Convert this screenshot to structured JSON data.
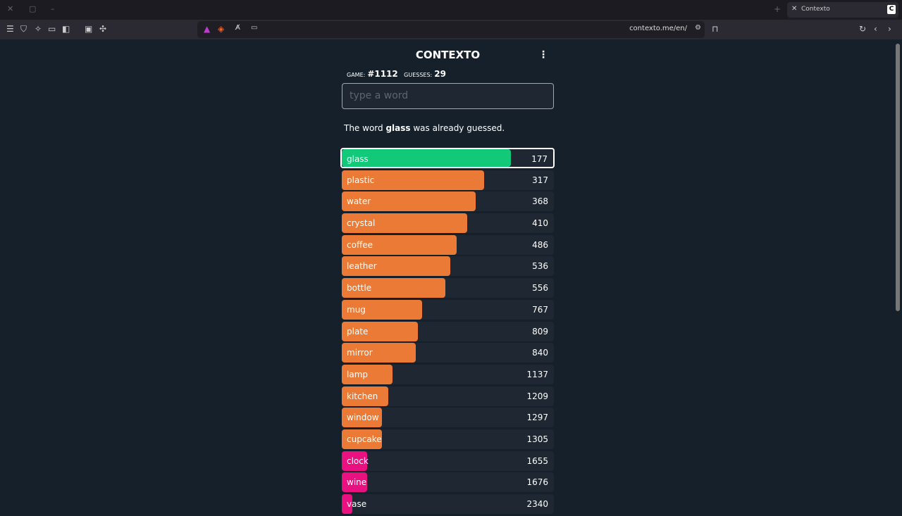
{
  "browser": {
    "tab_title": "Contexto",
    "tab_favicon": "C",
    "url": "contexto.me/en/"
  },
  "game": {
    "title": "CONTEXTO",
    "game_label": "GAME:",
    "game_number": "#1112",
    "guesses_label": "GUESSES:",
    "guesses": "29",
    "input_placeholder": "type a word",
    "message": {
      "prefix": "The word ",
      "word": "glass",
      "suffix": " was already guessed."
    },
    "colors": {
      "green": "#12c97a",
      "orange": "#ea7a36",
      "pink": "#e8117f"
    },
    "guesses_list": [
      {
        "word": "glass",
        "distance": "177",
        "fill": 0.8,
        "color": "green",
        "current": true
      },
      {
        "word": "plastic",
        "distance": "317",
        "fill": 0.67,
        "color": "orange"
      },
      {
        "word": "water",
        "distance": "368",
        "fill": 0.63,
        "color": "orange"
      },
      {
        "word": "crystal",
        "distance": "410",
        "fill": 0.59,
        "color": "orange"
      },
      {
        "word": "coffee",
        "distance": "486",
        "fill": 0.54,
        "color": "orange"
      },
      {
        "word": "leather",
        "distance": "536",
        "fill": 0.51,
        "color": "orange"
      },
      {
        "word": "bottle",
        "distance": "556",
        "fill": 0.49,
        "color": "orange"
      },
      {
        "word": "mug",
        "distance": "767",
        "fill": 0.38,
        "color": "orange"
      },
      {
        "word": "plate",
        "distance": "809",
        "fill": 0.36,
        "color": "orange"
      },
      {
        "word": "mirror",
        "distance": "840",
        "fill": 0.35,
        "color": "orange"
      },
      {
        "word": "lamp",
        "distance": "1137",
        "fill": 0.24,
        "color": "orange"
      },
      {
        "word": "kitchen",
        "distance": "1209",
        "fill": 0.22,
        "color": "orange"
      },
      {
        "word": "window",
        "distance": "1297",
        "fill": 0.19,
        "color": "orange"
      },
      {
        "word": "cupcake",
        "distance": "1305",
        "fill": 0.19,
        "color": "orange"
      },
      {
        "word": "clock",
        "distance": "1655",
        "fill": 0.12,
        "color": "pink"
      },
      {
        "word": "wine",
        "distance": "1676",
        "fill": 0.12,
        "color": "pink"
      },
      {
        "word": "vase",
        "distance": "2340",
        "fill": 0.05,
        "color": "pink"
      }
    ]
  }
}
